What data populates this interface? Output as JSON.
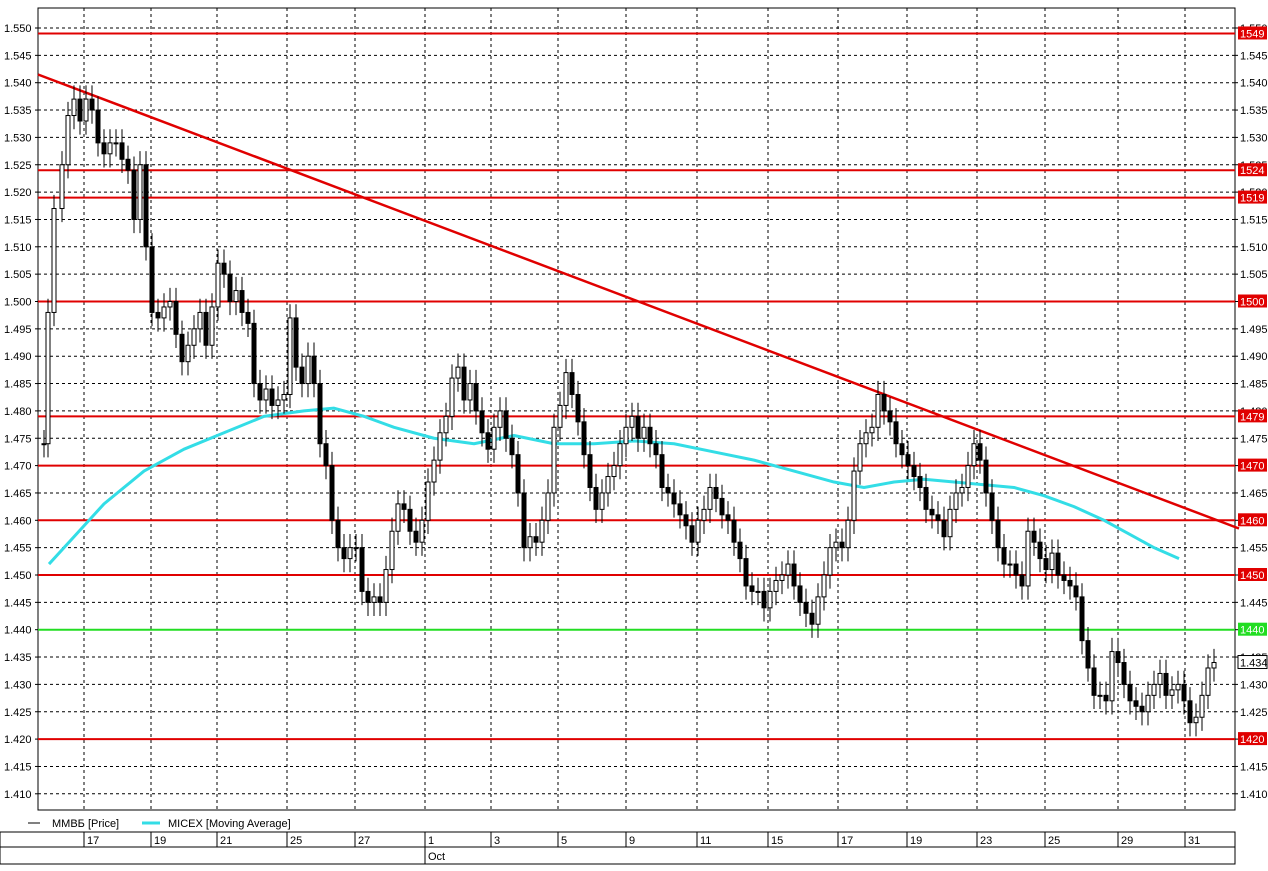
{
  "chart_data": {
    "type": "candlestick",
    "title": "",
    "xlabel": "",
    "ylabel": "",
    "ylim": [
      1.405,
      1.552
    ],
    "y_tick_step": 0.005,
    "grid": true,
    "y_ticks": [
      "1.550",
      "1.545",
      "1.540",
      "1.535",
      "1.530",
      "1.525",
      "1.520",
      "1.515",
      "1.510",
      "1.505",
      "1.500",
      "1.495",
      "1.490",
      "1.485",
      "1.480",
      "1.475",
      "1.470",
      "1.465",
      "1.460",
      "1.455",
      "1.450",
      "1.445",
      "1.440",
      "1.435",
      "1.430",
      "1.425",
      "1.420",
      "1.415",
      "1.410"
    ],
    "x_ticks": [
      "17",
      "19",
      "21",
      "25",
      "27",
      "1",
      "3",
      "5",
      "9",
      "11",
      "15",
      "17",
      "19",
      "23",
      "25",
      "29",
      "31"
    ],
    "month_label": "Oct",
    "month_tick_index": 5,
    "legend": [
      {
        "label": "MMBБ [Price]",
        "color": "#000000"
      },
      {
        "label": "MICEX [Moving Average]",
        "color": "#33dde6"
      }
    ],
    "last_price_label": "1.434",
    "last_price": 1.434,
    "horizontal_levels": [
      {
        "value": 1.549,
        "label": "1549",
        "color": "#e00000"
      },
      {
        "value": 1.524,
        "label": "1524",
        "color": "#e00000"
      },
      {
        "value": 1.519,
        "label": "1519",
        "color": "#e00000"
      },
      {
        "value": 1.5,
        "label": "1500",
        "color": "#e00000"
      },
      {
        "value": 1.479,
        "label": "1479",
        "color": "#e00000"
      },
      {
        "value": 1.47,
        "label": "1470",
        "color": "#e00000"
      },
      {
        "value": 1.46,
        "label": "1460",
        "color": "#e00000"
      },
      {
        "value": 1.45,
        "label": "1450",
        "color": "#e00000"
      },
      {
        "value": 1.44,
        "label": "1440",
        "color": "#22dd22"
      },
      {
        "value": 1.42,
        "label": "1420",
        "color": "#e00000"
      }
    ],
    "trendline": {
      "x": [
        0,
        1195
      ],
      "y": [
        1.5415,
        1.4585
      ],
      "color": "#e00000"
    },
    "price_series": [
      {
        "x": 0,
        "y": 1.474
      },
      {
        "x": 4,
        "y": 1.498
      },
      {
        "x": 10,
        "y": 1.517
      },
      {
        "x": 18,
        "y": 1.525
      },
      {
        "x": 24,
        "y": 1.534
      },
      {
        "x": 30,
        "y": 1.537
      },
      {
        "x": 36,
        "y": 1.533
      },
      {
        "x": 42,
        "y": 1.537
      },
      {
        "x": 48,
        "y": 1.535
      },
      {
        "x": 54,
        "y": 1.529
      },
      {
        "x": 60,
        "y": 1.527
      },
      {
        "x": 66,
        "y": 1.529
      },
      {
        "x": 72,
        "y": 1.529
      },
      {
        "x": 78,
        "y": 1.526
      },
      {
        "x": 84,
        "y": 1.524
      },
      {
        "x": 90,
        "y": 1.515
      },
      {
        "x": 96,
        "y": 1.525
      },
      {
        "x": 102,
        "y": 1.51
      },
      {
        "x": 108,
        "y": 1.498
      },
      {
        "x": 114,
        "y": 1.497
      },
      {
        "x": 120,
        "y": 1.499
      },
      {
        "x": 126,
        "y": 1.5
      },
      {
        "x": 132,
        "y": 1.494
      },
      {
        "x": 138,
        "y": 1.489
      },
      {
        "x": 144,
        "y": 1.492
      },
      {
        "x": 150,
        "y": 1.495
      },
      {
        "x": 156,
        "y": 1.498
      },
      {
        "x": 162,
        "y": 1.492
      },
      {
        "x": 168,
        "y": 1.499
      },
      {
        "x": 174,
        "y": 1.507
      },
      {
        "x": 180,
        "y": 1.505
      },
      {
        "x": 186,
        "y": 1.5
      },
      {
        "x": 192,
        "y": 1.502
      },
      {
        "x": 198,
        "y": 1.498
      },
      {
        "x": 204,
        "y": 1.496
      },
      {
        "x": 210,
        "y": 1.485
      },
      {
        "x": 216,
        "y": 1.482
      },
      {
        "x": 222,
        "y": 1.484
      },
      {
        "x": 228,
        "y": 1.481
      },
      {
        "x": 234,
        "y": 1.482
      },
      {
        "x": 240,
        "y": 1.483
      },
      {
        "x": 246,
        "y": 1.497
      },
      {
        "x": 252,
        "y": 1.488
      },
      {
        "x": 258,
        "y": 1.485
      },
      {
        "x": 264,
        "y": 1.49
      },
      {
        "x": 270,
        "y": 1.485
      },
      {
        "x": 276,
        "y": 1.474
      },
      {
        "x": 282,
        "y": 1.47
      },
      {
        "x": 288,
        "y": 1.46
      },
      {
        "x": 294,
        "y": 1.455
      },
      {
        "x": 300,
        "y": 1.453
      },
      {
        "x": 306,
        "y": 1.455
      },
      {
        "x": 312,
        "y": 1.455
      },
      {
        "x": 318,
        "y": 1.447
      },
      {
        "x": 324,
        "y": 1.445
      },
      {
        "x": 330,
        "y": 1.446
      },
      {
        "x": 336,
        "y": 1.445
      },
      {
        "x": 342,
        "y": 1.451
      },
      {
        "x": 348,
        "y": 1.458
      },
      {
        "x": 354,
        "y": 1.463
      },
      {
        "x": 360,
        "y": 1.462
      },
      {
        "x": 366,
        "y": 1.458
      },
      {
        "x": 372,
        "y": 1.456
      },
      {
        "x": 378,
        "y": 1.46
      },
      {
        "x": 384,
        "y": 1.467
      },
      {
        "x": 390,
        "y": 1.471
      },
      {
        "x": 396,
        "y": 1.476
      },
      {
        "x": 402,
        "y": 1.479
      },
      {
        "x": 408,
        "y": 1.486
      },
      {
        "x": 414,
        "y": 1.488
      },
      {
        "x": 420,
        "y": 1.482
      },
      {
        "x": 426,
        "y": 1.485
      },
      {
        "x": 432,
        "y": 1.48
      },
      {
        "x": 438,
        "y": 1.476
      },
      {
        "x": 444,
        "y": 1.473
      },
      {
        "x": 450,
        "y": 1.477
      },
      {
        "x": 456,
        "y": 1.48
      },
      {
        "x": 462,
        "y": 1.475
      },
      {
        "x": 468,
        "y": 1.472
      },
      {
        "x": 474,
        "y": 1.465
      },
      {
        "x": 480,
        "y": 1.455
      },
      {
        "x": 486,
        "y": 1.457
      },
      {
        "x": 492,
        "y": 1.456
      },
      {
        "x": 498,
        "y": 1.46
      },
      {
        "x": 504,
        "y": 1.465
      },
      {
        "x": 510,
        "y": 1.477
      },
      {
        "x": 516,
        "y": 1.481
      },
      {
        "x": 522,
        "y": 1.487
      },
      {
        "x": 528,
        "y": 1.483
      },
      {
        "x": 534,
        "y": 1.478
      },
      {
        "x": 540,
        "y": 1.472
      },
      {
        "x": 546,
        "y": 1.466
      },
      {
        "x": 552,
        "y": 1.462
      },
      {
        "x": 558,
        "y": 1.465
      },
      {
        "x": 564,
        "y": 1.468
      },
      {
        "x": 570,
        "y": 1.47
      },
      {
        "x": 576,
        "y": 1.474
      },
      {
        "x": 582,
        "y": 1.477
      },
      {
        "x": 588,
        "y": 1.479
      },
      {
        "x": 594,
        "y": 1.475
      },
      {
        "x": 600,
        "y": 1.477
      },
      {
        "x": 606,
        "y": 1.474
      },
      {
        "x": 612,
        "y": 1.472
      },
      {
        "x": 618,
        "y": 1.466
      },
      {
        "x": 624,
        "y": 1.465
      },
      {
        "x": 630,
        "y": 1.463
      },
      {
        "x": 636,
        "y": 1.461
      },
      {
        "x": 642,
        "y": 1.459
      },
      {
        "x": 648,
        "y": 1.456
      },
      {
        "x": 654,
        "y": 1.46
      },
      {
        "x": 660,
        "y": 1.462
      },
      {
        "x": 666,
        "y": 1.466
      },
      {
        "x": 672,
        "y": 1.464
      },
      {
        "x": 678,
        "y": 1.461
      },
      {
        "x": 684,
        "y": 1.46
      },
      {
        "x": 690,
        "y": 1.456
      },
      {
        "x": 696,
        "y": 1.453
      },
      {
        "x": 702,
        "y": 1.448
      },
      {
        "x": 708,
        "y": 1.447
      },
      {
        "x": 714,
        "y": 1.447
      },
      {
        "x": 720,
        "y": 1.444
      },
      {
        "x": 726,
        "y": 1.447
      },
      {
        "x": 732,
        "y": 1.449
      },
      {
        "x": 738,
        "y": 1.45
      },
      {
        "x": 744,
        "y": 1.452
      },
      {
        "x": 750,
        "y": 1.448
      },
      {
        "x": 756,
        "y": 1.445
      },
      {
        "x": 762,
        "y": 1.443
      },
      {
        "x": 768,
        "y": 1.441
      },
      {
        "x": 774,
        "y": 1.446
      },
      {
        "x": 780,
        "y": 1.45
      },
      {
        "x": 786,
        "y": 1.455
      },
      {
        "x": 792,
        "y": 1.456
      },
      {
        "x": 798,
        "y": 1.455
      },
      {
        "x": 804,
        "y": 1.46
      },
      {
        "x": 810,
        "y": 1.469
      },
      {
        "x": 816,
        "y": 1.474
      },
      {
        "x": 822,
        "y": 1.476
      },
      {
        "x": 828,
        "y": 1.477
      },
      {
        "x": 834,
        "y": 1.483
      },
      {
        "x": 840,
        "y": 1.48
      },
      {
        "x": 846,
        "y": 1.478
      },
      {
        "x": 852,
        "y": 1.474
      },
      {
        "x": 858,
        "y": 1.472
      },
      {
        "x": 864,
        "y": 1.47
      },
      {
        "x": 870,
        "y": 1.468
      },
      {
        "x": 876,
        "y": 1.466
      },
      {
        "x": 882,
        "y": 1.462
      },
      {
        "x": 888,
        "y": 1.461
      },
      {
        "x": 894,
        "y": 1.46
      },
      {
        "x": 900,
        "y": 1.457
      },
      {
        "x": 906,
        "y": 1.462
      },
      {
        "x": 912,
        "y": 1.465
      },
      {
        "x": 918,
        "y": 1.466
      },
      {
        "x": 924,
        "y": 1.47
      },
      {
        "x": 930,
        "y": 1.474
      },
      {
        "x": 936,
        "y": 1.471
      },
      {
        "x": 942,
        "y": 1.465
      },
      {
        "x": 948,
        "y": 1.46
      },
      {
        "x": 954,
        "y": 1.455
      },
      {
        "x": 960,
        "y": 1.452
      },
      {
        "x": 966,
        "y": 1.452
      },
      {
        "x": 972,
        "y": 1.45
      },
      {
        "x": 978,
        "y": 1.448
      },
      {
        "x": 984,
        "y": 1.458
      },
      {
        "x": 990,
        "y": 1.456
      },
      {
        "x": 996,
        "y": 1.453
      },
      {
        "x": 1002,
        "y": 1.451
      },
      {
        "x": 1008,
        "y": 1.454
      },
      {
        "x": 1014,
        "y": 1.45
      },
      {
        "x": 1020,
        "y": 1.449
      },
      {
        "x": 1026,
        "y": 1.448
      },
      {
        "x": 1032,
        "y": 1.446
      },
      {
        "x": 1038,
        "y": 1.438
      },
      {
        "x": 1044,
        "y": 1.433
      },
      {
        "x": 1050,
        "y": 1.428
      },
      {
        "x": 1056,
        "y": 1.428
      },
      {
        "x": 1062,
        "y": 1.427
      },
      {
        "x": 1068,
        "y": 1.436
      },
      {
        "x": 1074,
        "y": 1.434
      },
      {
        "x": 1080,
        "y": 1.43
      },
      {
        "x": 1086,
        "y": 1.427
      },
      {
        "x": 1092,
        "y": 1.426
      },
      {
        "x": 1098,
        "y": 1.425
      },
      {
        "x": 1104,
        "y": 1.428
      },
      {
        "x": 1110,
        "y": 1.43
      },
      {
        "x": 1116,
        "y": 1.432
      },
      {
        "x": 1122,
        "y": 1.428
      },
      {
        "x": 1128,
        "y": 1.429
      },
      {
        "x": 1134,
        "y": 1.43
      },
      {
        "x": 1140,
        "y": 1.427
      },
      {
        "x": 1146,
        "y": 1.423
      },
      {
        "x": 1152,
        "y": 1.424
      },
      {
        "x": 1158,
        "y": 1.428
      },
      {
        "x": 1164,
        "y": 1.433
      },
      {
        "x": 1170,
        "y": 1.434
      }
    ],
    "moving_average": [
      {
        "x": 5,
        "y": 1.452
      },
      {
        "x": 30,
        "y": 1.457
      },
      {
        "x": 60,
        "y": 1.463
      },
      {
        "x": 100,
        "y": 1.469
      },
      {
        "x": 140,
        "y": 1.473
      },
      {
        "x": 180,
        "y": 1.476
      },
      {
        "x": 220,
        "y": 1.479
      },
      {
        "x": 260,
        "y": 1.48
      },
      {
        "x": 290,
        "y": 1.4805
      },
      {
        "x": 320,
        "y": 1.479
      },
      {
        "x": 350,
        "y": 1.477
      },
      {
        "x": 390,
        "y": 1.475
      },
      {
        "x": 430,
        "y": 1.474
      },
      {
        "x": 470,
        "y": 1.4755
      },
      {
        "x": 510,
        "y": 1.474
      },
      {
        "x": 550,
        "y": 1.474
      },
      {
        "x": 590,
        "y": 1.4745
      },
      {
        "x": 630,
        "y": 1.474
      },
      {
        "x": 670,
        "y": 1.4725
      },
      {
        "x": 710,
        "y": 1.471
      },
      {
        "x": 750,
        "y": 1.469
      },
      {
        "x": 790,
        "y": 1.467
      },
      {
        "x": 820,
        "y": 1.466
      },
      {
        "x": 850,
        "y": 1.467
      },
      {
        "x": 880,
        "y": 1.4675
      },
      {
        "x": 910,
        "y": 1.467
      },
      {
        "x": 940,
        "y": 1.4665
      },
      {
        "x": 970,
        "y": 1.466
      },
      {
        "x": 1000,
        "y": 1.4645
      },
      {
        "x": 1030,
        "y": 1.4625
      },
      {
        "x": 1060,
        "y": 1.46
      },
      {
        "x": 1085,
        "y": 1.4575
      },
      {
        "x": 1110,
        "y": 1.455
      },
      {
        "x": 1135,
        "y": 1.453
      }
    ]
  }
}
